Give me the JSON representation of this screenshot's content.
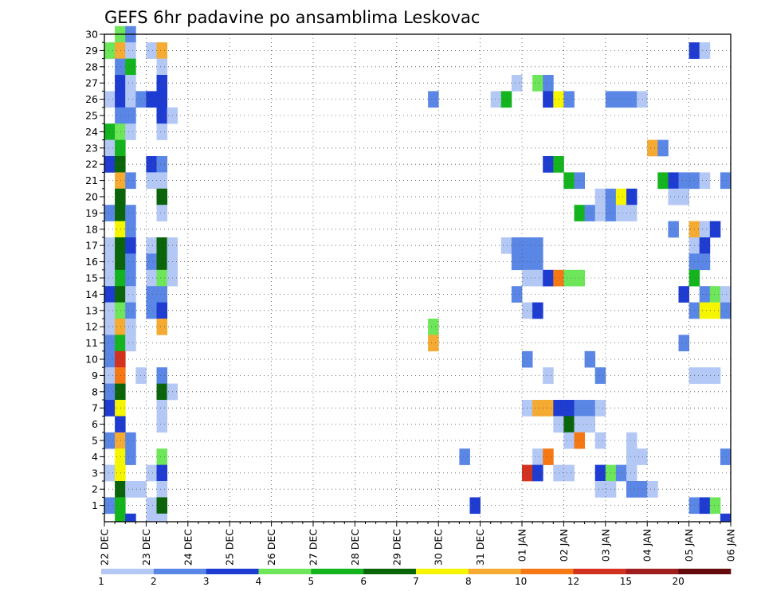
{
  "chart_data": {
    "type": "heatmap",
    "title": "GEFS 6hr padavine po ansamblima Leskovac",
    "y_ticks": [
      "1",
      "2",
      "3",
      "4",
      "5",
      "6",
      "7",
      "8",
      "9",
      "10",
      "11",
      "12",
      "13",
      "14",
      "15",
      "16",
      "17",
      "18",
      "19",
      "20",
      "21",
      "22",
      "23",
      "24",
      "25",
      "26",
      "27",
      "28",
      "29",
      "30"
    ],
    "x_ticks": [
      "22 DEC",
      "23 DEC",
      "24 DEC",
      "25 DEC",
      "26 DEC",
      "27 DEC",
      "28 DEC",
      "29 DEC",
      "30 DEC",
      "31 DEC",
      "01 JAN",
      "02 JAN",
      "03 JAN",
      "04 JAN",
      "05 JAN",
      "06 JAN"
    ],
    "x_step": "6h",
    "y_range": [
      0,
      30
    ],
    "grid": true,
    "legend": {
      "placement": "bottom",
      "labels": [
        "1",
        "2",
        "3",
        "4",
        "5",
        "6",
        "7",
        "8",
        "10",
        "12",
        "15",
        "20"
      ],
      "colors": [
        "#b4c8f5",
        "#5a87e6",
        "#1e3cd2",
        "#6ee65a",
        "#14b41e",
        "#0a640a",
        "#f5f500",
        "#f5aa32",
        "#f57814",
        "#d2321e",
        "#a01e1e",
        "#640a0a"
      ]
    },
    "cells": [
      {
        "m": 30,
        "t": 1,
        "v": 4
      },
      {
        "m": 30,
        "t": 2,
        "v": 2
      },
      {
        "m": 29,
        "t": 0,
        "v": 4
      },
      {
        "m": 29,
        "t": 1,
        "v": 8
      },
      {
        "m": 29,
        "t": 2,
        "v": 1
      },
      {
        "m": 29,
        "t": 4,
        "v": 1
      },
      {
        "m": 29,
        "t": 5,
        "v": 8
      },
      {
        "m": 29,
        "t": 56,
        "v": 3
      },
      {
        "m": 29,
        "t": 57,
        "v": 1
      },
      {
        "m": 28,
        "t": 1,
        "v": 2
      },
      {
        "m": 28,
        "t": 2,
        "v": 5
      },
      {
        "m": 28,
        "t": 5,
        "v": 1
      },
      {
        "m": 27,
        "t": 1,
        "v": 3
      },
      {
        "m": 27,
        "t": 2,
        "v": 1
      },
      {
        "m": 27,
        "t": 5,
        "v": 3
      },
      {
        "m": 27,
        "t": 39,
        "v": 1
      },
      {
        "m": 27,
        "t": 41,
        "v": 4
      },
      {
        "m": 27,
        "t": 42,
        "v": 2
      },
      {
        "m": 26,
        "t": 0,
        "v": 1
      },
      {
        "m": 26,
        "t": 1,
        "v": 3
      },
      {
        "m": 26,
        "t": 2,
        "v": 1
      },
      {
        "m": 26,
        "t": 3,
        "v": 2
      },
      {
        "m": 26,
        "t": 4,
        "v": 3
      },
      {
        "m": 26,
        "t": 5,
        "v": 3
      },
      {
        "m": 26,
        "t": 31,
        "v": 2
      },
      {
        "m": 26,
        "t": 37,
        "v": 1
      },
      {
        "m": 26,
        "t": 38,
        "v": 5
      },
      {
        "m": 26,
        "t": 42,
        "v": 3
      },
      {
        "m": 26,
        "t": 43,
        "v": 7
      },
      {
        "m": 26,
        "t": 44,
        "v": 2
      },
      {
        "m": 26,
        "t": 48,
        "v": 2
      },
      {
        "m": 26,
        "t": 49,
        "v": 2
      },
      {
        "m": 26,
        "t": 50,
        "v": 2
      },
      {
        "m": 26,
        "t": 51,
        "v": 1
      },
      {
        "m": 25,
        "t": 1,
        "v": 2
      },
      {
        "m": 25,
        "t": 2,
        "v": 2
      },
      {
        "m": 25,
        "t": 5,
        "v": 3
      },
      {
        "m": 25,
        "t": 6,
        "v": 1
      },
      {
        "m": 24,
        "t": 0,
        "v": 5
      },
      {
        "m": 24,
        "t": 1,
        "v": 4
      },
      {
        "m": 24,
        "t": 2,
        "v": 1
      },
      {
        "m": 24,
        "t": 5,
        "v": 1
      },
      {
        "m": 23,
        "t": 0,
        "v": 1
      },
      {
        "m": 23,
        "t": 1,
        "v": 5
      },
      {
        "m": 23,
        "t": 52,
        "v": 8
      },
      {
        "m": 23,
        "t": 53,
        "v": 2
      },
      {
        "m": 22,
        "t": 0,
        "v": 3
      },
      {
        "m": 22,
        "t": 1,
        "v": 6
      },
      {
        "m": 22,
        "t": 4,
        "v": 3
      },
      {
        "m": 22,
        "t": 5,
        "v": 2
      },
      {
        "m": 22,
        "t": 42,
        "v": 3
      },
      {
        "m": 22,
        "t": 43,
        "v": 5
      },
      {
        "m": 21,
        "t": 1,
        "v": 8
      },
      {
        "m": 21,
        "t": 2,
        "v": 2
      },
      {
        "m": 21,
        "t": 4,
        "v": 1
      },
      {
        "m": 21,
        "t": 5,
        "v": 1
      },
      {
        "m": 21,
        "t": 44,
        "v": 5
      },
      {
        "m": 21,
        "t": 45,
        "v": 2
      },
      {
        "m": 21,
        "t": 53,
        "v": 5
      },
      {
        "m": 21,
        "t": 54,
        "v": 3
      },
      {
        "m": 21,
        "t": 55,
        "v": 2
      },
      {
        "m": 21,
        "t": 56,
        "v": 2
      },
      {
        "m": 21,
        "t": 57,
        "v": 1
      },
      {
        "m": 21,
        "t": 59,
        "v": 2
      },
      {
        "m": 20,
        "t": 1,
        "v": 6
      },
      {
        "m": 20,
        "t": 5,
        "v": 6
      },
      {
        "m": 20,
        "t": 47,
        "v": 1
      },
      {
        "m": 20,
        "t": 48,
        "v": 2
      },
      {
        "m": 20,
        "t": 49,
        "v": 7
      },
      {
        "m": 20,
        "t": 50,
        "v": 3
      },
      {
        "m": 20,
        "t": 54,
        "v": 1
      },
      {
        "m": 20,
        "t": 55,
        "v": 1
      },
      {
        "m": 19,
        "t": 0,
        "v": 2
      },
      {
        "m": 19,
        "t": 1,
        "v": 6
      },
      {
        "m": 19,
        "t": 2,
        "v": 2
      },
      {
        "m": 19,
        "t": 5,
        "v": 1
      },
      {
        "m": 19,
        "t": 45,
        "v": 5
      },
      {
        "m": 19,
        "t": 46,
        "v": 2
      },
      {
        "m": 19,
        "t": 47,
        "v": 1
      },
      {
        "m": 19,
        "t": 48,
        "v": 2
      },
      {
        "m": 19,
        "t": 49,
        "v": 1
      },
      {
        "m": 19,
        "t": 50,
        "v": 1
      },
      {
        "m": 18,
        "t": 1,
        "v": 7
      },
      {
        "m": 18,
        "t": 2,
        "v": 2
      },
      {
        "m": 18,
        "t": 54,
        "v": 2
      },
      {
        "m": 18,
        "t": 56,
        "v": 8
      },
      {
        "m": 18,
        "t": 57,
        "v": 1
      },
      {
        "m": 18,
        "t": 58,
        "v": 3
      },
      {
        "m": 17,
        "t": 0,
        "v": 1
      },
      {
        "m": 17,
        "t": 1,
        "v": 6
      },
      {
        "m": 17,
        "t": 2,
        "v": 3
      },
      {
        "m": 17,
        "t": 4,
        "v": 1
      },
      {
        "m": 17,
        "t": 5,
        "v": 6
      },
      {
        "m": 17,
        "t": 6,
        "v": 1
      },
      {
        "m": 17,
        "t": 38,
        "v": 1
      },
      {
        "m": 17,
        "t": 39,
        "v": 2
      },
      {
        "m": 17,
        "t": 40,
        "v": 2
      },
      {
        "m": 17,
        "t": 41,
        "v": 2
      },
      {
        "m": 17,
        "t": 56,
        "v": 1
      },
      {
        "m": 17,
        "t": 57,
        "v": 3
      },
      {
        "m": 16,
        "t": 0,
        "v": 1
      },
      {
        "m": 16,
        "t": 1,
        "v": 6
      },
      {
        "m": 16,
        "t": 2,
        "v": 2
      },
      {
        "m": 16,
        "t": 4,
        "v": 2
      },
      {
        "m": 16,
        "t": 5,
        "v": 6
      },
      {
        "m": 16,
        "t": 6,
        "v": 1
      },
      {
        "m": 16,
        "t": 39,
        "v": 2
      },
      {
        "m": 16,
        "t": 40,
        "v": 2
      },
      {
        "m": 16,
        "t": 41,
        "v": 2
      },
      {
        "m": 16,
        "t": 56,
        "v": 2
      },
      {
        "m": 16,
        "t": 57,
        "v": 2
      },
      {
        "m": 15,
        "t": 0,
        "v": 1
      },
      {
        "m": 15,
        "t": 1,
        "v": 5
      },
      {
        "m": 15,
        "t": 2,
        "v": 2
      },
      {
        "m": 15,
        "t": 4,
        "v": 1
      },
      {
        "m": 15,
        "t": 5,
        "v": 4
      },
      {
        "m": 15,
        "t": 6,
        "v": 1
      },
      {
        "m": 15,
        "t": 40,
        "v": 1
      },
      {
        "m": 15,
        "t": 41,
        "v": 1
      },
      {
        "m": 15,
        "t": 42,
        "v": 3
      },
      {
        "m": 15,
        "t": 43,
        "v": 10
      },
      {
        "m": 15,
        "t": 44,
        "v": 4
      },
      {
        "m": 15,
        "t": 45,
        "v": 4
      },
      {
        "m": 15,
        "t": 56,
        "v": 5
      },
      {
        "m": 14,
        "t": 0,
        "v": 3
      },
      {
        "m": 14,
        "t": 1,
        "v": 6
      },
      {
        "m": 14,
        "t": 2,
        "v": 1
      },
      {
        "m": 14,
        "t": 4,
        "v": 2
      },
      {
        "m": 14,
        "t": 5,
        "v": 2
      },
      {
        "m": 14,
        "t": 39,
        "v": 2
      },
      {
        "m": 14,
        "t": 55,
        "v": 3
      },
      {
        "m": 14,
        "t": 57,
        "v": 2
      },
      {
        "m": 14,
        "t": 58,
        "v": 4
      },
      {
        "m": 14,
        "t": 59,
        "v": 1
      },
      {
        "m": 13,
        "t": 0,
        "v": 1
      },
      {
        "m": 13,
        "t": 1,
        "v": 4
      },
      {
        "m": 13,
        "t": 2,
        "v": 2
      },
      {
        "m": 13,
        "t": 4,
        "v": 2
      },
      {
        "m": 13,
        "t": 5,
        "v": 3
      },
      {
        "m": 13,
        "t": 40,
        "v": 1
      },
      {
        "m": 13,
        "t": 41,
        "v": 3
      },
      {
        "m": 13,
        "t": 56,
        "v": 2
      },
      {
        "m": 13,
        "t": 57,
        "v": 7
      },
      {
        "m": 13,
        "t": 58,
        "v": 7
      },
      {
        "m": 13,
        "t": 59,
        "v": 2
      },
      {
        "m": 12,
        "t": 0,
        "v": 1
      },
      {
        "m": 12,
        "t": 1,
        "v": 8
      },
      {
        "m": 12,
        "t": 2,
        "v": 1
      },
      {
        "m": 12,
        "t": 5,
        "v": 8
      },
      {
        "m": 12,
        "t": 31,
        "v": 4
      },
      {
        "m": 11,
        "t": 0,
        "v": 2
      },
      {
        "m": 11,
        "t": 1,
        "v": 5
      },
      {
        "m": 11,
        "t": 2,
        "v": 1
      },
      {
        "m": 11,
        "t": 31,
        "v": 8
      },
      {
        "m": 11,
        "t": 55,
        "v": 2
      },
      {
        "m": 10,
        "t": 0,
        "v": 2
      },
      {
        "m": 10,
        "t": 1,
        "v": 12
      },
      {
        "m": 10,
        "t": 40,
        "v": 2
      },
      {
        "m": 10,
        "t": 46,
        "v": 2
      },
      {
        "m": 9,
        "t": 0,
        "v": 1
      },
      {
        "m": 9,
        "t": 1,
        "v": 10
      },
      {
        "m": 9,
        "t": 3,
        "v": 1
      },
      {
        "m": 9,
        "t": 5,
        "v": 2
      },
      {
        "m": 9,
        "t": 42,
        "v": 1
      },
      {
        "m": 9,
        "t": 47,
        "v": 2
      },
      {
        "m": 9,
        "t": 56,
        "v": 1
      },
      {
        "m": 9,
        "t": 57,
        "v": 1
      },
      {
        "m": 9,
        "t": 58,
        "v": 1
      },
      {
        "m": 8,
        "t": 0,
        "v": 2
      },
      {
        "m": 8,
        "t": 1,
        "v": 6
      },
      {
        "m": 8,
        "t": 5,
        "v": 6
      },
      {
        "m": 8,
        "t": 6,
        "v": 1
      },
      {
        "m": 7,
        "t": 0,
        "v": 3
      },
      {
        "m": 7,
        "t": 1,
        "v": 7
      },
      {
        "m": 7,
        "t": 5,
        "v": 1
      },
      {
        "m": 7,
        "t": 40,
        "v": 1
      },
      {
        "m": 7,
        "t": 41,
        "v": 8
      },
      {
        "m": 7,
        "t": 42,
        "v": 8
      },
      {
        "m": 7,
        "t": 43,
        "v": 3
      },
      {
        "m": 7,
        "t": 44,
        "v": 3
      },
      {
        "m": 7,
        "t": 45,
        "v": 2
      },
      {
        "m": 7,
        "t": 46,
        "v": 2
      },
      {
        "m": 7,
        "t": 47,
        "v": 1
      },
      {
        "m": 6,
        "t": 1,
        "v": 3
      },
      {
        "m": 6,
        "t": 5,
        "v": 1
      },
      {
        "m": 6,
        "t": 43,
        "v": 1
      },
      {
        "m": 6,
        "t": 44,
        "v": 6
      },
      {
        "m": 6,
        "t": 45,
        "v": 1
      },
      {
        "m": 6,
        "t": 46,
        "v": 1
      },
      {
        "m": 5,
        "t": 0,
        "v": 2
      },
      {
        "m": 5,
        "t": 1,
        "v": 8
      },
      {
        "m": 5,
        "t": 2,
        "v": 2
      },
      {
        "m": 5,
        "t": 44,
        "v": 1
      },
      {
        "m": 5,
        "t": 45,
        "v": 10
      },
      {
        "m": 5,
        "t": 47,
        "v": 1
      },
      {
        "m": 5,
        "t": 50,
        "v": 1
      },
      {
        "m": 4,
        "t": 1,
        "v": 7
      },
      {
        "m": 4,
        "t": 2,
        "v": 2
      },
      {
        "m": 4,
        "t": 5,
        "v": 4
      },
      {
        "m": 4,
        "t": 34,
        "v": 2
      },
      {
        "m": 4,
        "t": 41,
        "v": 1
      },
      {
        "m": 4,
        "t": 42,
        "v": 10
      },
      {
        "m": 4,
        "t": 50,
        "v": 1
      },
      {
        "m": 4,
        "t": 51,
        "v": 1
      },
      {
        "m": 4,
        "t": 59,
        "v": 2
      },
      {
        "m": 3,
        "t": 0,
        "v": 1
      },
      {
        "m": 3,
        "t": 1,
        "v": 7
      },
      {
        "m": 3,
        "t": 4,
        "v": 1
      },
      {
        "m": 3,
        "t": 5,
        "v": 3
      },
      {
        "m": 3,
        "t": 40,
        "v": 12
      },
      {
        "m": 3,
        "t": 41,
        "v": 3
      },
      {
        "m": 3,
        "t": 43,
        "v": 1
      },
      {
        "m": 3,
        "t": 44,
        "v": 1
      },
      {
        "m": 3,
        "t": 47,
        "v": 3
      },
      {
        "m": 3,
        "t": 48,
        "v": 4
      },
      {
        "m": 3,
        "t": 49,
        "v": 2
      },
      {
        "m": 3,
        "t": 50,
        "v": 1
      },
      {
        "m": 2,
        "t": 1,
        "v": 6
      },
      {
        "m": 2,
        "t": 2,
        "v": 1
      },
      {
        "m": 2,
        "t": 3,
        "v": 1
      },
      {
        "m": 2,
        "t": 5,
        "v": 1
      },
      {
        "m": 2,
        "t": 47,
        "v": 1
      },
      {
        "m": 2,
        "t": 48,
        "v": 1
      },
      {
        "m": 2,
        "t": 50,
        "v": 2
      },
      {
        "m": 2,
        "t": 51,
        "v": 2
      },
      {
        "m": 2,
        "t": 52,
        "v": 1
      },
      {
        "m": 1,
        "t": 0,
        "v": 2
      },
      {
        "m": 1,
        "t": 1,
        "v": 5
      },
      {
        "m": 1,
        "t": 4,
        "v": 1
      },
      {
        "m": 1,
        "t": 5,
        "v": 6
      },
      {
        "m": 1,
        "t": 35,
        "v": 3
      },
      {
        "m": 1,
        "t": 56,
        "v": 2
      },
      {
        "m": 1,
        "t": 57,
        "v": 3
      },
      {
        "m": 1,
        "t": 58,
        "v": 4
      },
      {
        "m": 0,
        "t": 1,
        "v": 5
      },
      {
        "m": 0,
        "t": 2,
        "v": 3
      },
      {
        "m": 0,
        "t": 4,
        "v": 1
      },
      {
        "m": 0,
        "t": 5,
        "v": 1
      },
      {
        "m": 0,
        "t": 59,
        "v": 3
      }
    ]
  }
}
